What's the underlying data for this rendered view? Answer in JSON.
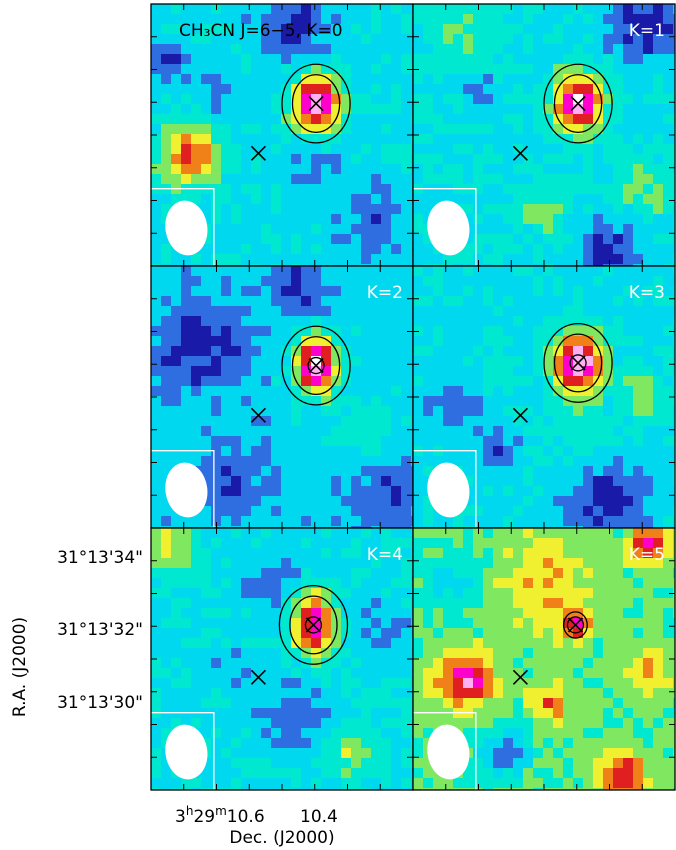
{
  "chart_data": {
    "type": "heatmap",
    "ylabel": "R.A. (J2000)",
    "xlabel": "Dec. (J2000)",
    "ytick_labels": [
      "31°13'34\"",
      "31°13'32\"",
      "31°13'30\""
    ],
    "xtick_labels": {
      "hour": "3",
      "min": "29",
      "sec1": "10.6",
      "sec2": "10.4"
    },
    "colormap": [
      "#1a1aa8",
      "#2e6ee0",
      "#00d8f0",
      "#00e8d0",
      "#7fe860",
      "#f0f030",
      "#f08018",
      "#e02020",
      "#ff00cc",
      "#ffb0f0",
      "#ffffff"
    ],
    "panels": [
      {
        "label": "CH₃CN J=6−5, K=0",
        "peak_value": 1.0,
        "contour_levels": 2,
        "source_marker": "x",
        "peak_marker": "x"
      },
      {
        "label": "K=1",
        "peak_value": 1.0,
        "contour_levels": 2,
        "source_marker": "x",
        "peak_marker": "x"
      },
      {
        "label": "K=2",
        "peak_value": 1.0,
        "contour_levels": 2,
        "source_marker": "x",
        "peak_marker": "circle-x"
      },
      {
        "label": "K=3",
        "peak_value": 1.0,
        "contour_levels": 2,
        "source_marker": "x",
        "peak_marker": "circle-x"
      },
      {
        "label": "K=4",
        "peak_value": 0.9,
        "contour_levels": 2,
        "source_marker": "x",
        "peak_marker": "circle-x"
      },
      {
        "label": "K=5",
        "peak_value": 0.8,
        "contour_levels": 1,
        "source_marker": "x",
        "peak_marker": "circle-x"
      }
    ],
    "beam_shape": "ellipse",
    "grid": false,
    "legend": "none"
  }
}
